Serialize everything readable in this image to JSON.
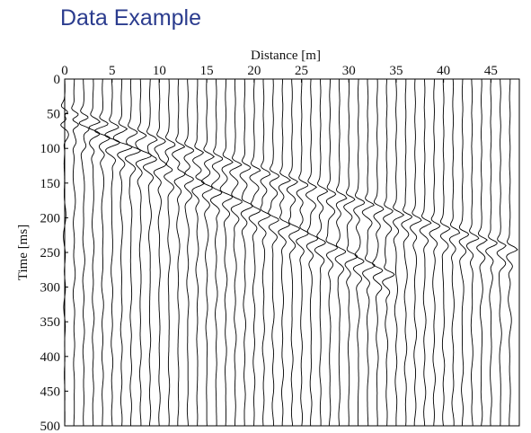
{
  "chart_data": {
    "type": "wiggle",
    "title": "Data Example",
    "xlabel": "Distance [m]",
    "ylabel": "Time  [ms]",
    "xlim": [
      0,
      48
    ],
    "xticks": [
      0,
      5,
      10,
      15,
      20,
      25,
      30,
      35,
      40,
      45
    ],
    "ylim": [
      0,
      500
    ],
    "yticks": [
      0,
      50,
      100,
      150,
      200,
      250,
      300,
      350,
      400,
      450,
      500
    ],
    "x": [
      0,
      1,
      2,
      3,
      4,
      5,
      6,
      7,
      8,
      9,
      10,
      11,
      12,
      13,
      14,
      15,
      16,
      17,
      18,
      19,
      20,
      21,
      22,
      23,
      24,
      25,
      26,
      27,
      28,
      29,
      30,
      31,
      32,
      33,
      34,
      35,
      36,
      37,
      38,
      39,
      40,
      41,
      42,
      43,
      44,
      45,
      46,
      47
    ],
    "events": [
      {
        "values": [
          48,
          52,
          56,
          61,
          65,
          69,
          73,
          77,
          82,
          86,
          90,
          94,
          98,
          103,
          107,
          111,
          115,
          119,
          124,
          128,
          132,
          136,
          140,
          145,
          149,
          153,
          157,
          161,
          166,
          170,
          174,
          178,
          182,
          187,
          191,
          195,
          199,
          203,
          208,
          212,
          216,
          220,
          224,
          229,
          233,
          237,
          241,
          245
        ]
      },
      {
        "values": [
          58,
          65,
          71,
          78,
          84,
          91,
          98,
          104,
          111,
          117,
          124,
          131,
          137,
          144,
          150,
          157,
          164,
          170,
          177,
          183,
          190,
          197,
          203,
          210,
          216,
          223,
          230,
          236,
          243,
          249,
          256,
          263,
          269,
          276,
          282,
          null,
          null,
          null,
          null,
          null,
          null,
          null,
          null,
          null,
          null,
          null,
          null,
          null
        ]
      }
    ],
    "color": "#000000"
  }
}
